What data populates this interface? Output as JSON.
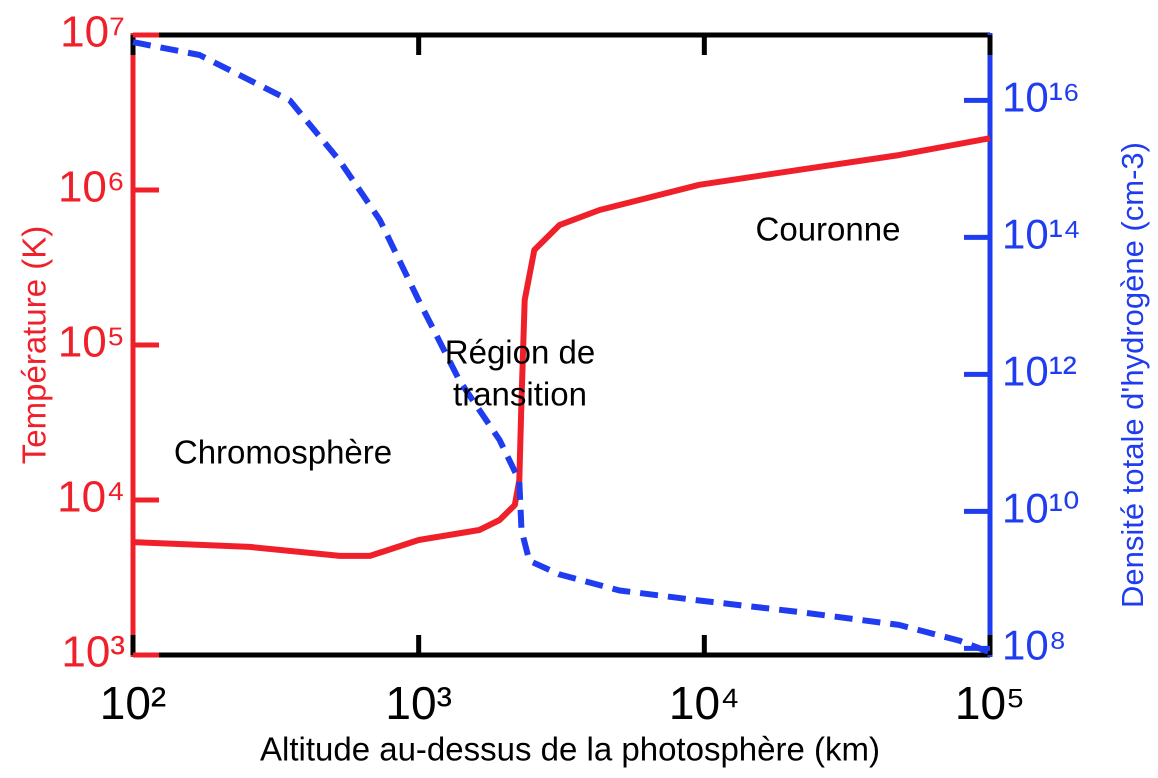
{
  "chart_data": {
    "type": "line",
    "xlabel": "Altitude au-dessus de la photosphère (km)",
    "ylabel": "Température (K)",
    "y2label": "Densité totale d'hydrogène (cm-3)",
    "xscale": "log",
    "yscale": "log",
    "y2scale": "log",
    "xlim": [
      100,
      100000
    ],
    "ylim": [
      1000,
      10000000
    ],
    "y2lim": [
      80000000,
      90000000000000000
    ],
    "xticks": [
      {
        "value": 100,
        "label": "10²"
      },
      {
        "value": 1000,
        "label": "10³"
      },
      {
        "value": 10000,
        "label": "10⁴"
      },
      {
        "value": 100000,
        "label": "10⁵"
      }
    ],
    "yticks": [
      {
        "value": 1000,
        "label": "10³"
      },
      {
        "value": 10000,
        "label": "10⁴"
      },
      {
        "value": 100000,
        "label": "10⁵"
      },
      {
        "value": 1000000,
        "label": "10⁶"
      },
      {
        "value": 10000000,
        "label": "10⁷"
      }
    ],
    "y2ticks": [
      {
        "value": 100000000,
        "label": "10⁸"
      },
      {
        "value": 10000000000,
        "label": "10¹⁰"
      },
      {
        "value": 1000000000000,
        "label": "10¹²"
      },
      {
        "value": 100000000000000,
        "label": "10¹⁴"
      },
      {
        "value": 10000000000000000,
        "label": "10¹⁶"
      }
    ],
    "yaxis_color": "#f0202a",
    "y2axis_color": "#1f3cf0",
    "annotations": [
      "Chromosphère",
      "Région de",
      "transition",
      "Couronne"
    ],
    "series": [
      {
        "color": "#f0202a",
        "linestyle": "solid",
        "x": [
          100,
          256,
          530,
          675,
          1000,
          1630,
          1920,
          2170,
          2250,
          2290,
          2350,
          2540,
          3110,
          4300,
          9600,
          21500,
          48000,
          100000
        ],
        "values": [
          5350,
          4980,
          4360,
          4360,
          5520,
          6400,
          7430,
          9290,
          13400,
          44200,
          195000,
          410000,
          594000,
          743000,
          1080000,
          1350000,
          1680000,
          2160000
        ]
      },
      {
        "color": "#1f3cf0",
        "linestyle": "dashed",
        "axis": "y2",
        "x": [
          100,
          171,
          354,
          530,
          731,
          1000,
          1390,
          1920,
          2250,
          2290,
          2440,
          3110,
          5050,
          9600,
          21500,
          48000,
          78000,
          100000
        ],
        "values": [
          71000000000000000,
          46000000000000000,
          10000000000000000,
          1300000000000000,
          180000000000000,
          12000000000000,
          810000000000,
          110000000000,
          28000000000,
          5300000000,
          1900000000,
          1200000000,
          700000000,
          500000000,
          340000000,
          220000000,
          130000000,
          88000000
        ]
      }
    ]
  }
}
